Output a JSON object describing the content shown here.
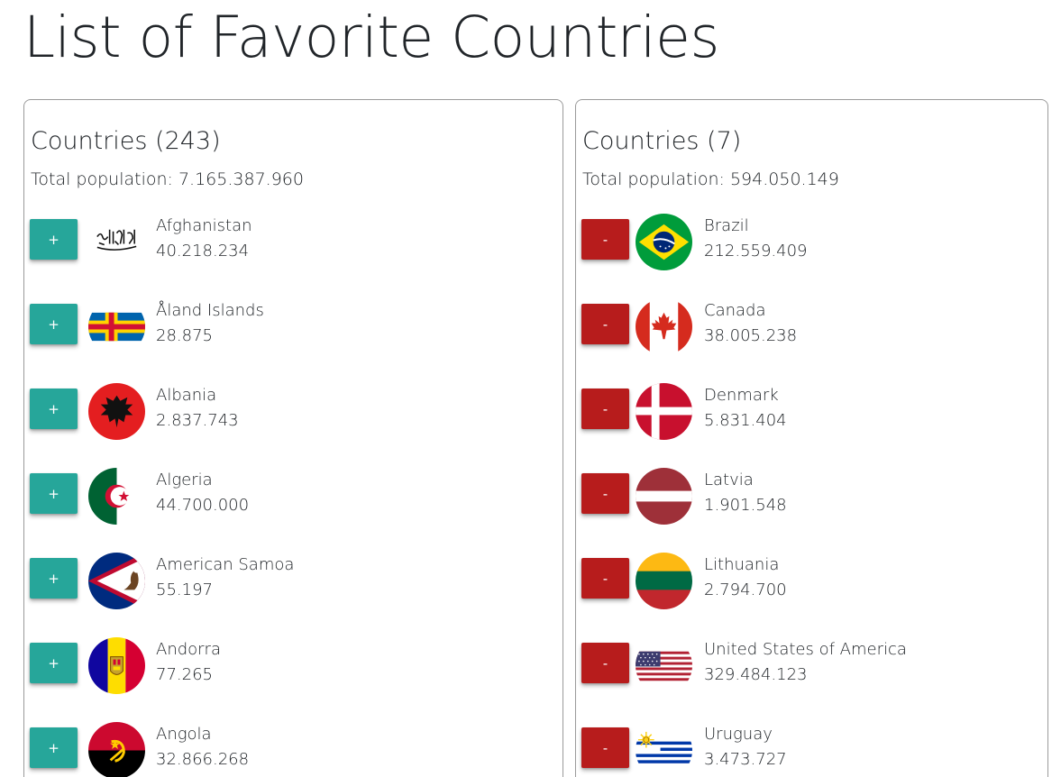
{
  "page": {
    "title": "List of Favorite Countries"
  },
  "colors": {
    "add_button": "#26a69a",
    "remove_button": "#b71c1c"
  },
  "all_countries": {
    "title": "Countries (243)",
    "total_population": "Total population: 7.165.387.960",
    "button_label": "+",
    "items": [
      {
        "name": "Afghanistan",
        "population": "40.218.234",
        "flag": "afghanistan-flag-icon"
      },
      {
        "name": "Åland Islands",
        "population": "28.875",
        "flag": "aland-islands-flag-icon"
      },
      {
        "name": "Albania",
        "population": "2.837.743",
        "flag": "albania-flag-icon"
      },
      {
        "name": "Algeria",
        "population": "44.700.000",
        "flag": "algeria-flag-icon"
      },
      {
        "name": "American Samoa",
        "population": "55.197",
        "flag": "american-samoa-flag-icon"
      },
      {
        "name": "Andorra",
        "population": "77.265",
        "flag": "andorra-flag-icon"
      },
      {
        "name": "Angola",
        "population": "32.866.268",
        "flag": "angola-flag-icon"
      }
    ]
  },
  "favorites": {
    "title": "Countries (7)",
    "total_population": "Total population: 594.050.149",
    "button_label": "-",
    "items": [
      {
        "name": "Brazil",
        "population": "212.559.409",
        "flag": "brazil-flag-icon"
      },
      {
        "name": "Canada",
        "population": "38.005.238",
        "flag": "canada-flag-icon"
      },
      {
        "name": "Denmark",
        "population": "5.831.404",
        "flag": "denmark-flag-icon"
      },
      {
        "name": "Latvia",
        "population": "1.901.548",
        "flag": "latvia-flag-icon"
      },
      {
        "name": "Lithuania",
        "population": "2.794.700",
        "flag": "lithuania-flag-icon"
      },
      {
        "name": "United States of America",
        "population": "329.484.123",
        "flag": "usa-flag-icon"
      },
      {
        "name": "Uruguay",
        "population": "3.473.727",
        "flag": "uruguay-flag-icon"
      }
    ]
  }
}
